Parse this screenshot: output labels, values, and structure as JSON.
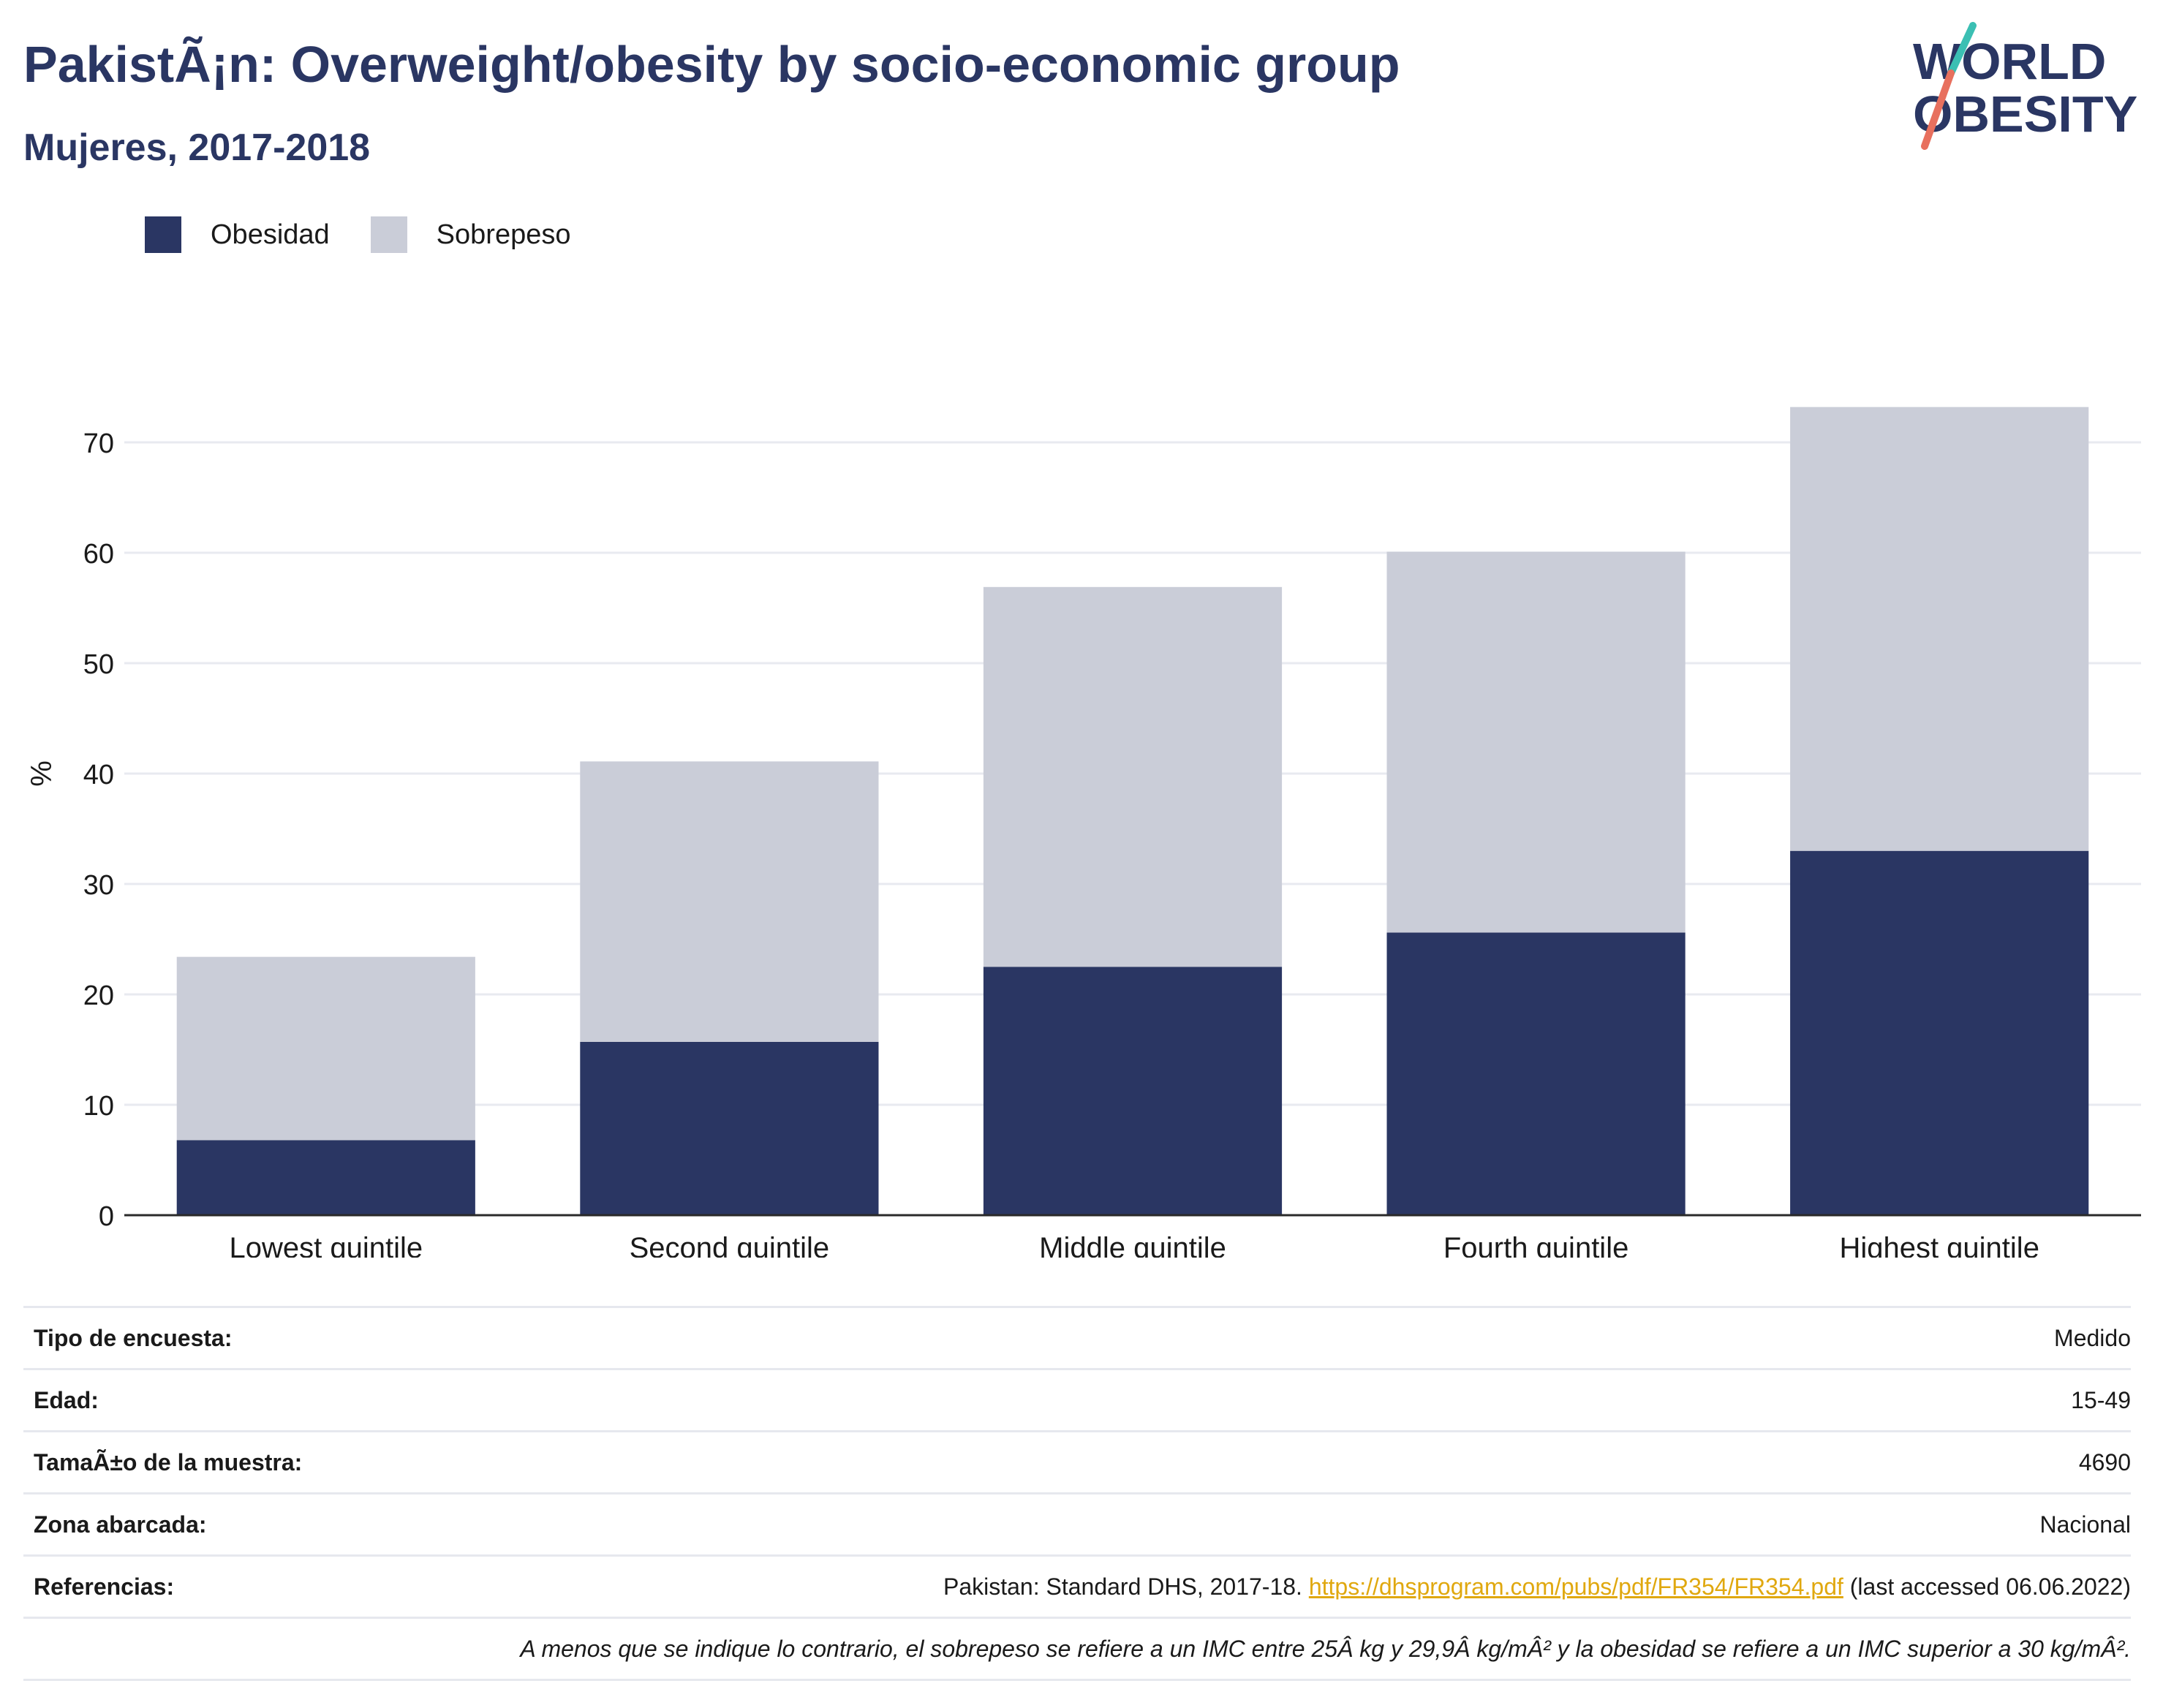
{
  "header": {
    "title": "PakistÃ¡n: Overweight/obesity by socio-economic group",
    "subtitle": "Mujeres, 2017-2018",
    "logo_line1": "WORLD",
    "logo_line2": "OBESITY"
  },
  "colors": {
    "obesity": "#2a3663",
    "overweight": "#cacdd8",
    "title": "#2a3663",
    "link": "#e0a80f",
    "grid": "#e8eaf0"
  },
  "chart_data": {
    "type": "bar",
    "stacked": true,
    "categories": [
      "Lowest quintile",
      "Second quintile",
      "Middle quintile",
      "Fourth quintile",
      "Highest quintile"
    ],
    "series": [
      {
        "name": "Obesidad",
        "values": [
          6.8,
          15.7,
          22.5,
          25.6,
          33.0
        ]
      },
      {
        "name": "Sobrepeso",
        "values": [
          16.6,
          25.4,
          34.4,
          34.5,
          40.2
        ]
      }
    ],
    "ylabel": "%",
    "ylim": [
      0,
      80
    ],
    "yticks": [
      0,
      10,
      20,
      30,
      40,
      50,
      60,
      70
    ],
    "grid": true,
    "legend_position": "top-left"
  },
  "meta": {
    "survey_type": {
      "label": "Tipo de encuesta:",
      "value": "Medido"
    },
    "age": {
      "label": "Edad:",
      "value": "15-49"
    },
    "sample_size": {
      "label": "TamaÃ±o de la muestra:",
      "value": "4690"
    },
    "area": {
      "label": "Zona abarcada:",
      "value": "Nacional"
    },
    "references": {
      "label": "Referencias:",
      "text_before": "Pakistan: Standard DHS, 2017-18.",
      "link": "https://dhsprogram.com/pubs/pdf/FR354/FR354.pdf",
      "text_after": "(last accessed 06.06.2022)"
    },
    "note": "A menos que se indique lo contrario, el sobrepeso se refiere a un IMC entre 25Â kg y 29,9Â kg/mÂ² y la obesidad se refiere a un IMC superior a 30 kg/mÂ²."
  }
}
